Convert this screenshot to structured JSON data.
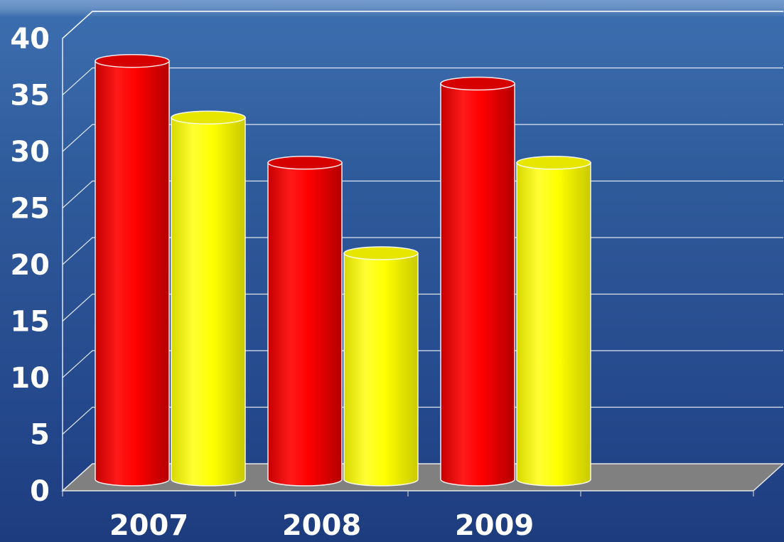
{
  "chart_data": {
    "type": "bar",
    "style": "3d-cylinder",
    "categories": [
      "2007",
      "2008",
      "2009"
    ],
    "series": [
      {
        "values": [
          37,
          28,
          35
        ],
        "color": "#ff0000"
      },
      {
        "values": [
          32,
          20,
          28
        ],
        "color": "#ffff00"
      }
    ],
    "ylim": [
      0,
      40
    ],
    "yticks": [
      "0",
      "5",
      "10",
      "15",
      "20",
      "25",
      "30",
      "35",
      "40"
    ],
    "grid": true,
    "legend": "none",
    "colors": {
      "gridline": "#ffffff",
      "floor": "#808080",
      "label": "#ffffff"
    }
  }
}
